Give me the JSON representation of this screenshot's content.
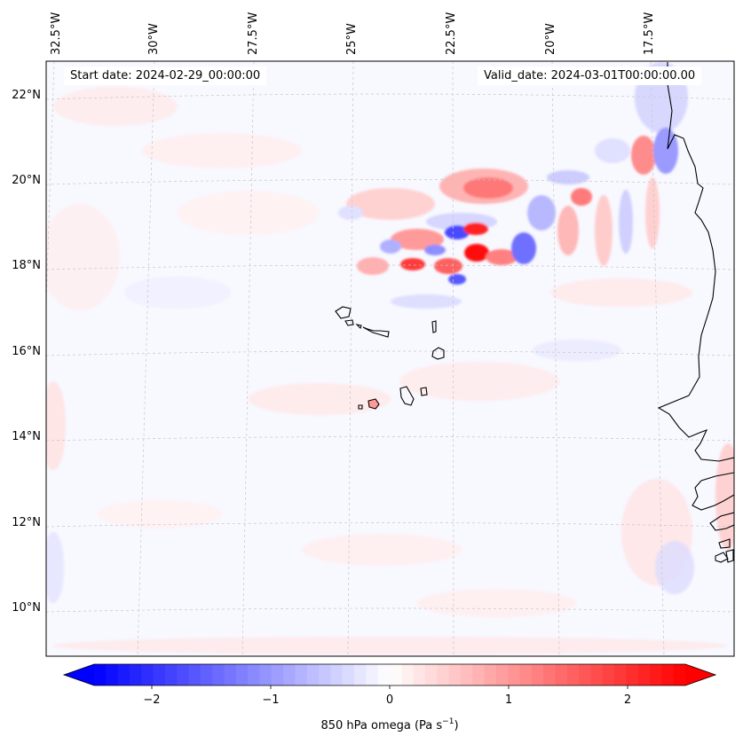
{
  "map": {
    "start_label": "Start date: 2024-02-29_00:00:00",
    "valid_label": "Valid_date: 2024-03-01T00:00:00.00",
    "lon_labels": [
      "32.5°W",
      "30°W",
      "27.5°W",
      "25°W",
      "22.5°W",
      "20°W",
      "17.5°W"
    ],
    "lat_labels": [
      "22°N",
      "20°N",
      "18°N",
      "16°N",
      "14°N",
      "12°N",
      "10°N"
    ],
    "field": "850 hPa omega",
    "colormap": "bwr",
    "gridlines": true
  },
  "colorbar": {
    "label": "850 hPa omega (Pa s",
    "label_exp": "−1",
    "label_close": ")",
    "ticks": [
      "−2",
      "−1",
      "0",
      "1",
      "2"
    ],
    "vmin": -2.75,
    "vmax": 2.75,
    "extend": "both",
    "colors": {
      "low": "#0000ff",
      "mid": "#ffffff",
      "high": "#ff0000"
    }
  }
}
